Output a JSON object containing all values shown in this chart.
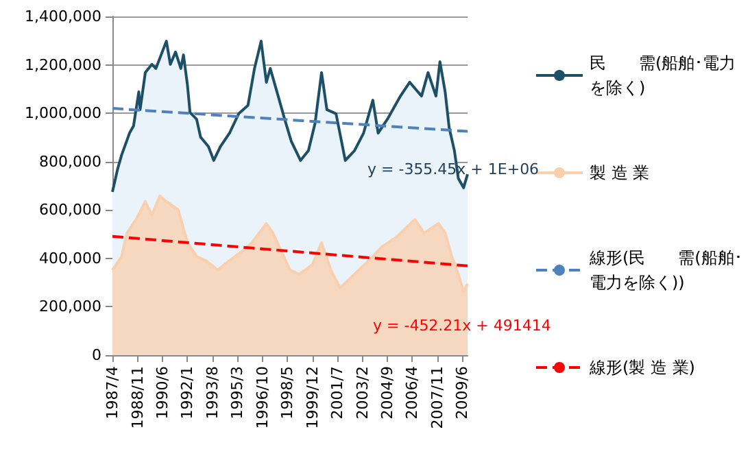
{
  "chart_data": {
    "type": "area",
    "marker": "none",
    "grid": "y",
    "legend": "right",
    "xlim": [
      "1987-04",
      "2009-10"
    ],
    "ylim": [
      0,
      1400000
    ],
    "yticks": [
      0,
      {
        "value": 200000,
        "label": "200,000"
      },
      {
        "value": 400000,
        "label": "400,000"
      },
      {
        "value": 600000,
        "label": "600,000"
      },
      {
        "value": 800000,
        "label": "800,000"
      },
      {
        "value": 1000000,
        "label": "1,000,000"
      },
      {
        "value": 1200000,
        "label": "1,200,000"
      },
      {
        "value": 1400000,
        "label": "1,400,000"
      }
    ],
    "xticks": [
      {
        "value": "1987-04",
        "label": "1987/4"
      },
      {
        "value": "1988-11",
        "label": "1988/11"
      },
      {
        "value": "1990-06",
        "label": "1990/6"
      },
      {
        "value": "1992-01",
        "label": "1992/1"
      },
      {
        "value": "1993-08",
        "label": "1993/8"
      },
      {
        "value": "1995-03",
        "label": "1995/3"
      },
      {
        "value": "1996-10",
        "label": "1996/10"
      },
      {
        "value": "1998-05",
        "label": "1998/5"
      },
      {
        "value": "1999-12",
        "label": "1999/12"
      },
      {
        "value": "2001-07",
        "label": "2001/7"
      },
      {
        "value": "2003-02",
        "label": "2003/2"
      },
      {
        "value": "2004-09",
        "label": "2004/9"
      },
      {
        "value": "2006-04",
        "label": "2006/4"
      },
      {
        "value": "2007-11",
        "label": "2007/11"
      },
      {
        "value": "2009-06",
        "label": "2009/6"
      }
    ],
    "series": [
      {
        "name": "民　　需(船舶･電力を除く)",
        "color": "#1d5066",
        "x": [
          "1987-04",
          "1987-08",
          "1987-11",
          "1988-05",
          "1988-08",
          "1988-12",
          "1989-01",
          "1989-05",
          "1989-10",
          "1990-01",
          "1990-05",
          "1990-09",
          "1990-12",
          "1991-04",
          "1991-08",
          "1991-10",
          "1992-01",
          "1992-03",
          "1992-08",
          "1992-11",
          "1993-05",
          "1993-09",
          "1994-02",
          "1994-09",
          "1995-04",
          "1995-11",
          "1996-04",
          "1996-09",
          "1997-01",
          "1997-04",
          "1997-10",
          "1998-03",
          "1998-08",
          "1999-03",
          "1999-09",
          "2000-02",
          "2000-07",
          "2000-11",
          "2001-06",
          "2002-01",
          "2002-08",
          "2003-03",
          "2003-10",
          "2004-02",
          "2004-09",
          "2005-07",
          "2006-02",
          "2006-11",
          "2007-04",
          "2007-10",
          "2008-01",
          "2008-05",
          "2008-08",
          "2008-12",
          "2009-03",
          "2009-07",
          "2009-10"
        ],
        "values": [
          675000,
          771000,
          828000,
          918000,
          947000,
          1088000,
          1015000,
          1168000,
          1202000,
          1185000,
          1241000,
          1298000,
          1202000,
          1253000,
          1185000,
          1241000,
          1117000,
          1003000,
          975000,
          901000,
          862000,
          805000,
          862000,
          918000,
          998000,
          1032000,
          1185000,
          1298000,
          1128000,
          1185000,
          1071000,
          975000,
          884000,
          805000,
          845000,
          958000,
          1168000,
          1015000,
          998000,
          805000,
          845000,
          918000,
          1054000,
          918000,
          975000,
          1071000,
          1128000,
          1071000,
          1168000,
          1071000,
          1213000,
          1088000,
          941000,
          845000,
          731000,
          692000,
          748000
        ]
      },
      {
        "name": "製 造 業",
        "color": "#f9cfae",
        "x": [
          "1987-04",
          "1987-11",
          "1988-03",
          "1988-10",
          "1989-05",
          "1989-10",
          "1990-04",
          "1990-09",
          "1991-06",
          "1992-01",
          "1992-08",
          "1993-03",
          "1993-12",
          "1994-09",
          "1995-07",
          "1996-02",
          "1997-01",
          "1997-06",
          "1998-07",
          "1999-02",
          "1999-12",
          "2000-07",
          "2001-02",
          "2001-09",
          "2002-08",
          "2003-07",
          "2004-05",
          "2005-04",
          "2006-06",
          "2007-01",
          "2007-12",
          "2008-05",
          "2008-10",
          "2009-03",
          "2009-07",
          "2009-10"
        ],
        "values": [
          352000,
          408000,
          505000,
          561000,
          635000,
          578000,
          658000,
          635000,
          601000,
          465000,
          408000,
          391000,
          352000,
          391000,
          431000,
          465000,
          544000,
          505000,
          352000,
          334000,
          374000,
          465000,
          352000,
          278000,
          334000,
          391000,
          448000,
          488000,
          561000,
          505000,
          544000,
          505000,
          408000,
          334000,
          261000,
          295000
        ]
      },
      {
        "name": "線形(民　　需(船舶･電力を除く))",
        "type": "line",
        "line_style": "dashed",
        "color": "#4f81bd",
        "x": [
          "1987-04",
          "2009-10"
        ],
        "values": [
          1020000,
          925000
        ]
      },
      {
        "name": "線形(製 造 業)",
        "type": "line",
        "line_style": "dashed",
        "color": "#ff0000",
        "x": [
          "1987-04",
          "2009-10"
        ],
        "values": [
          491000,
          369000
        ]
      }
    ],
    "annotations": [
      "y = -355.45x + 1E+06",
      "y = -452.21x + 491414"
    ]
  }
}
